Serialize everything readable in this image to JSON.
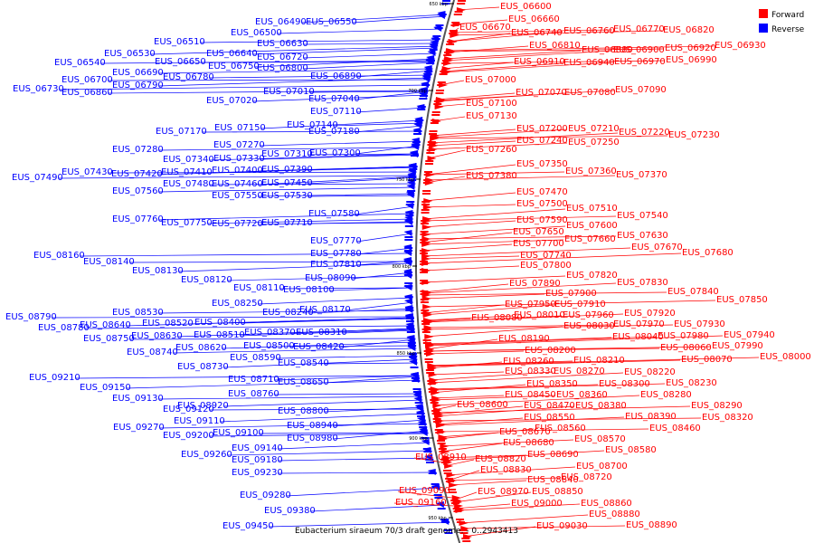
{
  "caption": "Eubacterium siraeum 70/3 draft genome. - 0..2943413",
  "legend": {
    "items": [
      {
        "label": "Forward",
        "color": "#ff0000"
      },
      {
        "label": "Reverse",
        "color": "#0000ff"
      }
    ]
  },
  "colors": {
    "forward": "#ff0000",
    "reverse": "#0000ff",
    "backbone": "#555555"
  },
  "ticks": [
    "650 kbp",
    "700 kbp",
    "750 kbp",
    "800 kbp",
    "850 kbp",
    "900 kbp",
    "950 kbp"
  ],
  "reverse_labels": [
    "EUS_06490",
    "EUS_06550",
    "EUS_06500",
    "EUS_06510",
    "EUS_06630",
    "EUS_06530",
    "EUS_06640",
    "EUS_06720",
    "EUS_06540",
    "EUS_06650",
    "EUS_06750",
    "EUS_06800",
    "EUS_06690",
    "EUS_06780",
    "EUS_06700",
    "EUS_06790",
    "EUS_06890",
    "EUS_06730",
    "EUS_06860",
    "EUS_07010",
    "EUS_07040",
    "EUS_07020",
    "EUS_07110",
    "EUS_07140",
    "EUS_07170",
    "EUS_07150",
    "EUS_07180",
    "EUS_07270",
    "EUS_07280",
    "EUS_07310",
    "EUS_07300",
    "EUS_07340",
    "EUS_07330",
    "EUS_07390",
    "EUS_07430",
    "EUS_07420",
    "EUS_07410",
    "EUS_07400",
    "EUS_07490",
    "EUS_07480",
    "EUS_07460",
    "EUS_07450",
    "EUS_07560",
    "EUS_07550",
    "EUS_07530",
    "EUS_07580",
    "EUS_07760",
    "EUS_07750",
    "EUS_07720",
    "EUS_07710",
    "EUS_07770",
    "EUS_07780",
    "EUS_07810",
    "EUS_08160",
    "EUS_08140",
    "EUS_08130",
    "EUS_08090",
    "EUS_08120",
    "EUS_08100",
    "EUS_08110",
    "EUS_08170",
    "EUS_08250",
    "EUS_08240",
    "EUS_08530",
    "EUS_08790",
    "EUS_08640",
    "EUS_08520",
    "EUS_08400",
    "EUS_08780",
    "EUS_08750",
    "EUS_08630",
    "EUS_08510",
    "EUS_08370",
    "EUS_08310",
    "EUS_08500",
    "EUS_08420",
    "EUS_08620",
    "EUS_08740",
    "EUS_08590",
    "EUS_08540",
    "EUS_08730",
    "EUS_08650",
    "EUS_08710",
    "EUS_09210",
    "EUS_08760",
    "EUS_09150",
    "EUS_08920",
    "EUS_08800",
    "EUS_09130",
    "EUS_09120",
    "EUS_09110",
    "EUS_08940",
    "EUS_09270",
    "EUS_09200",
    "EUS_09100",
    "EUS_08980",
    "EUS_09140",
    "EUS_09260",
    "EUS_09180",
    "EUS_09230",
    "EUS_09280",
    "EUS_09380",
    "EUS_09450"
  ],
  "forward_labels": [
    "EUS_06600",
    "EUS_06660",
    "EUS_06670",
    "EUS_06740",
    "EUS_06760",
    "EUS_06770",
    "EUS_06820",
    "EUS_06810",
    "EUS_06880",
    "EUS_06900",
    "EUS_06920",
    "EUS_06930",
    "EUS_06910",
    "EUS_06940",
    "EUS_06970",
    "EUS_06990",
    "EUS_07000",
    "EUS_07070",
    "EUS_07080",
    "EUS_07090",
    "EUS_07100",
    "EUS_07130",
    "EUS_07200",
    "EUS_07210",
    "EUS_07220",
    "EUS_07230",
    "EUS_07240",
    "EUS_07250",
    "EUS_07260",
    "EUS_07350",
    "EUS_07360",
    "EUS_07370",
    "EUS_07380",
    "EUS_07470",
    "EUS_07510",
    "EUS_07500",
    "EUS_07540",
    "EUS_07590",
    "EUS_07600",
    "EUS_07650",
    "EUS_07630",
    "EUS_07660",
    "EUS_07700",
    "EUS_07670",
    "EUS_07680",
    "EUS_07740",
    "EUS_07800",
    "EUS_07820",
    "EUS_07890",
    "EUS_07830",
    "EUS_07840",
    "EUS_07900",
    "EUS_07850",
    "EUS_07950",
    "EUS_07910",
    "EUS_08080",
    "EUS_08010",
    "EUS_07960",
    "EUS_07920",
    "EUS_08030",
    "EUS_07970",
    "EUS_07930",
    "EUS_08040",
    "EUS_07980",
    "EUS_07940",
    "EUS_08060",
    "EUS_07990",
    "EUS_08070",
    "EUS_08000",
    "EUS_08190",
    "EUS_08200",
    "EUS_08210",
    "EUS_08260",
    "EUS_08270",
    "EUS_08220",
    "EUS_08330",
    "EUS_08300",
    "EUS_08230",
    "EUS_08350",
    "EUS_08280",
    "EUS_08450",
    "EUS_08360",
    "EUS_08290",
    "EUS_08470",
    "EUS_08380",
    "EUS_08320",
    "EUS_08600",
    "EUS_08550",
    "EUS_08390",
    "EUS_08560",
    "EUS_08460",
    "EUS_08670",
    "EUS_08570",
    "EUS_08680",
    "EUS_08580",
    "EUS_08690",
    "EUS_08910",
    "EUS_08820",
    "EUS_08700",
    "EUS_08830",
    "EUS_08720",
    "EUS_08840",
    "EUS_09090",
    "EUS_08970",
    "EUS_08850",
    "EUS_09160",
    "EUS_09000",
    "EUS_08860",
    "EUS_08880",
    "EUS_09030",
    "EUS_08890"
  ]
}
